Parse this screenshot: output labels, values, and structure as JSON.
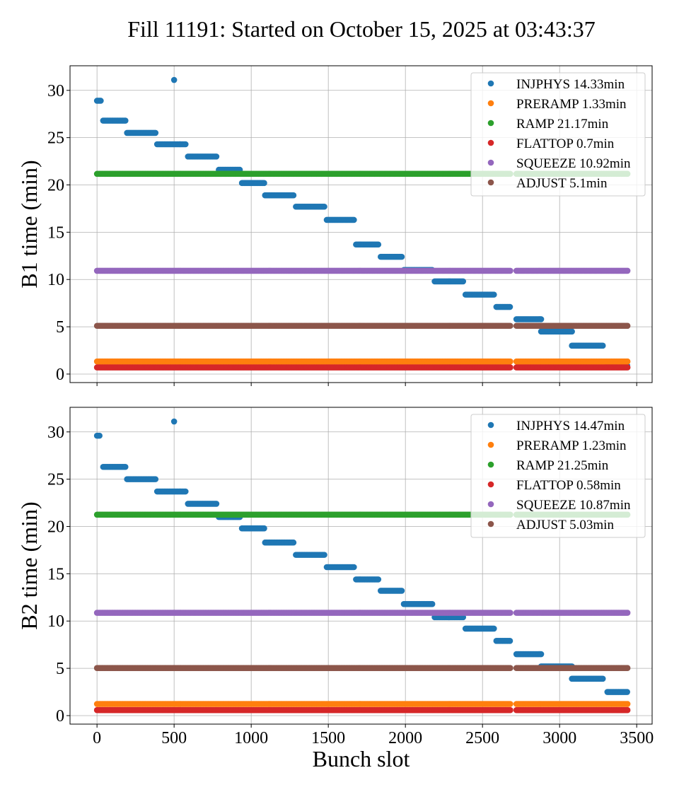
{
  "title": "Fill 11191: Started on October 15, 2025 at 03:43:37",
  "colors": {
    "INJPHYS": "#1f77b4",
    "PRERAMP": "#ff7f0e",
    "RAMP": "#2ca02c",
    "FLATTOP": "#d62728",
    "SQUEEZE": "#9467bd",
    "ADJUST": "#8c564b"
  },
  "chart_data": [
    {
      "type": "scatter",
      "ylabel": "B1 time (min)",
      "xlabel": "",
      "xlim": [
        -175,
        3600
      ],
      "ylim": [
        -0.9,
        32.6
      ],
      "xticks": [
        0,
        500,
        1000,
        1500,
        2000,
        2500,
        3000,
        3500
      ],
      "yticks": [
        0,
        5,
        10,
        15,
        20,
        25,
        30
      ],
      "grid": true,
      "legend_position": "top-right",
      "legend": [
        "INJPHYS 14.33min",
        "PRERAMP 1.33min",
        "RAMP 21.17min",
        "FLATTOP 0.7min",
        "SQUEEZE 10.92min",
        "ADJUST 5.1min"
      ],
      "series": [
        {
          "name": "INJPHYS",
          "color": "#1f77b4",
          "segments": [
            {
              "x": [
                0,
                30
              ],
              "y": 28.9
            },
            {
              "x": [
                500,
                505
              ],
              "y": 31.1
            },
            {
              "x": [
                40,
                185
              ],
              "y": 26.8
            },
            {
              "x": [
                195,
                380
              ],
              "y": 25.5
            },
            {
              "x": [
                390,
                580
              ],
              "y": 24.3
            },
            {
              "x": [
                590,
                780
              ],
              "y": 23.0
            },
            {
              "x": [
                790,
                930
              ],
              "y": 21.6
            },
            {
              "x": [
                940,
                1090
              ],
              "y": 20.2
            },
            {
              "x": [
                1090,
                1280
              ],
              "y": 18.9
            },
            {
              "x": [
                1290,
                1480
              ],
              "y": 17.7
            },
            {
              "x": [
                1490,
                1670
              ],
              "y": 16.3
            },
            {
              "x": [
                1680,
                1830
              ],
              "y": 13.7
            },
            {
              "x": [
                1840,
                1980
              ],
              "y": 12.4
            },
            {
              "x": [
                1990,
                2180
              ],
              "y": 11.0
            },
            {
              "x": [
                2190,
                2380
              ],
              "y": 9.8
            },
            {
              "x": [
                2390,
                2580
              ],
              "y": 8.4
            },
            {
              "x": [
                2590,
                2680
              ],
              "y": 7.1
            },
            {
              "x": [
                2720,
                2880
              ],
              "y": 5.8
            },
            {
              "x": [
                2880,
                3080
              ],
              "y": 4.5
            },
            {
              "x": [
                3080,
                3280
              ],
              "y": 3.0
            },
            {
              "x": [
                3310,
                3440
              ],
              "y": 0.9
            }
          ]
        },
        {
          "name": "PRERAMP",
          "color": "#ff7f0e",
          "segments": [
            {
              "x": [
                0,
                2680
              ],
              "y": 1.33
            },
            {
              "x": [
                2720,
                3440
              ],
              "y": 1.33
            }
          ]
        },
        {
          "name": "RAMP",
          "color": "#2ca02c",
          "segments": [
            {
              "x": [
                0,
                2680
              ],
              "y": 21.17
            },
            {
              "x": [
                2720,
                3440
              ],
              "y": 21.17
            }
          ]
        },
        {
          "name": "FLATTOP",
          "color": "#d62728",
          "segments": [
            {
              "x": [
                0,
                2680
              ],
              "y": 0.7
            },
            {
              "x": [
                2720,
                3440
              ],
              "y": 0.7
            }
          ]
        },
        {
          "name": "SQUEEZE",
          "color": "#9467bd",
          "segments": [
            {
              "x": [
                0,
                2680
              ],
              "y": 10.92
            },
            {
              "x": [
                2720,
                3440
              ],
              "y": 10.92
            }
          ]
        },
        {
          "name": "ADJUST",
          "color": "#8c564b",
          "segments": [
            {
              "x": [
                0,
                2680
              ],
              "y": 5.1
            },
            {
              "x": [
                2720,
                3440
              ],
              "y": 5.1
            }
          ]
        }
      ]
    },
    {
      "type": "scatter",
      "ylabel": "B2 time (min)",
      "xlabel": "Bunch slot",
      "xlim": [
        -175,
        3600
      ],
      "ylim": [
        -0.9,
        32.6
      ],
      "xticks": [
        0,
        500,
        1000,
        1500,
        2000,
        2500,
        3000,
        3500
      ],
      "yticks": [
        0,
        5,
        10,
        15,
        20,
        25,
        30
      ],
      "grid": true,
      "legend_position": "top-right",
      "legend": [
        "INJPHYS 14.47min",
        "PRERAMP 1.23min",
        "RAMP 21.25min",
        "FLATTOP 0.58min",
        "SQUEEZE 10.87min",
        "ADJUST 5.03min"
      ],
      "series": [
        {
          "name": "INJPHYS",
          "color": "#1f77b4",
          "segments": [
            {
              "x": [
                0,
                20
              ],
              "y": 29.6
            },
            {
              "x": [
                500,
                505
              ],
              "y": 31.1
            },
            {
              "x": [
                40,
                185
              ],
              "y": 26.3
            },
            {
              "x": [
                195,
                380
              ],
              "y": 25.0
            },
            {
              "x": [
                390,
                580
              ],
              "y": 23.7
            },
            {
              "x": [
                590,
                780
              ],
              "y": 22.4
            },
            {
              "x": [
                790,
                930
              ],
              "y": 21.0
            },
            {
              "x": [
                940,
                1090
              ],
              "y": 19.8
            },
            {
              "x": [
                1090,
                1280
              ],
              "y": 18.3
            },
            {
              "x": [
                1290,
                1480
              ],
              "y": 17.0
            },
            {
              "x": [
                1490,
                1670
              ],
              "y": 15.7
            },
            {
              "x": [
                1680,
                1830
              ],
              "y": 14.4
            },
            {
              "x": [
                1840,
                1980
              ],
              "y": 13.2
            },
            {
              "x": [
                1990,
                2180
              ],
              "y": 11.8
            },
            {
              "x": [
                2190,
                2380
              ],
              "y": 10.4
            },
            {
              "x": [
                2390,
                2580
              ],
              "y": 9.2
            },
            {
              "x": [
                2590,
                2680
              ],
              "y": 7.9
            },
            {
              "x": [
                2720,
                2880
              ],
              "y": 6.5
            },
            {
              "x": [
                2880,
                3080
              ],
              "y": 5.2
            },
            {
              "x": [
                3080,
                3280
              ],
              "y": 3.9
            },
            {
              "x": [
                3310,
                3440
              ],
              "y": 2.5
            }
          ]
        },
        {
          "name": "PRERAMP",
          "color": "#ff7f0e",
          "segments": [
            {
              "x": [
                0,
                2680
              ],
              "y": 1.23
            },
            {
              "x": [
                2720,
                3440
              ],
              "y": 1.23
            }
          ]
        },
        {
          "name": "RAMP",
          "color": "#2ca02c",
          "segments": [
            {
              "x": [
                0,
                2680
              ],
              "y": 21.25
            },
            {
              "x": [
                2720,
                3440
              ],
              "y": 21.25
            }
          ]
        },
        {
          "name": "FLATTOP",
          "color": "#d62728",
          "segments": [
            {
              "x": [
                0,
                2680
              ],
              "y": 0.58
            },
            {
              "x": [
                2720,
                3440
              ],
              "y": 0.58
            }
          ]
        },
        {
          "name": "SQUEEZE",
          "color": "#9467bd",
          "segments": [
            {
              "x": [
                0,
                2680
              ],
              "y": 10.87
            },
            {
              "x": [
                2720,
                3440
              ],
              "y": 10.87
            }
          ]
        },
        {
          "name": "ADJUST",
          "color": "#8c564b",
          "segments": [
            {
              "x": [
                0,
                2680
              ],
              "y": 5.03
            },
            {
              "x": [
                2720,
                3440
              ],
              "y": 5.03
            }
          ]
        }
      ]
    }
  ]
}
